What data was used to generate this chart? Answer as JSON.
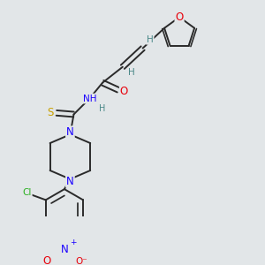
{
  "bg_color": "#e2e6e8",
  "bond_color": "#2a2a2a",
  "bond_width": 1.4,
  "dbo": 0.012,
  "atom_colors": {
    "O": "#e8000a",
    "N": "#1a00ff",
    "S": "#c8a000",
    "Cl": "#2ab020",
    "H": "#4a8888",
    "C": "#2a2a2a"
  },
  "fs": 7.5,
  "fig_w": 3.0,
  "fig_h": 3.0,
  "dpi": 100
}
